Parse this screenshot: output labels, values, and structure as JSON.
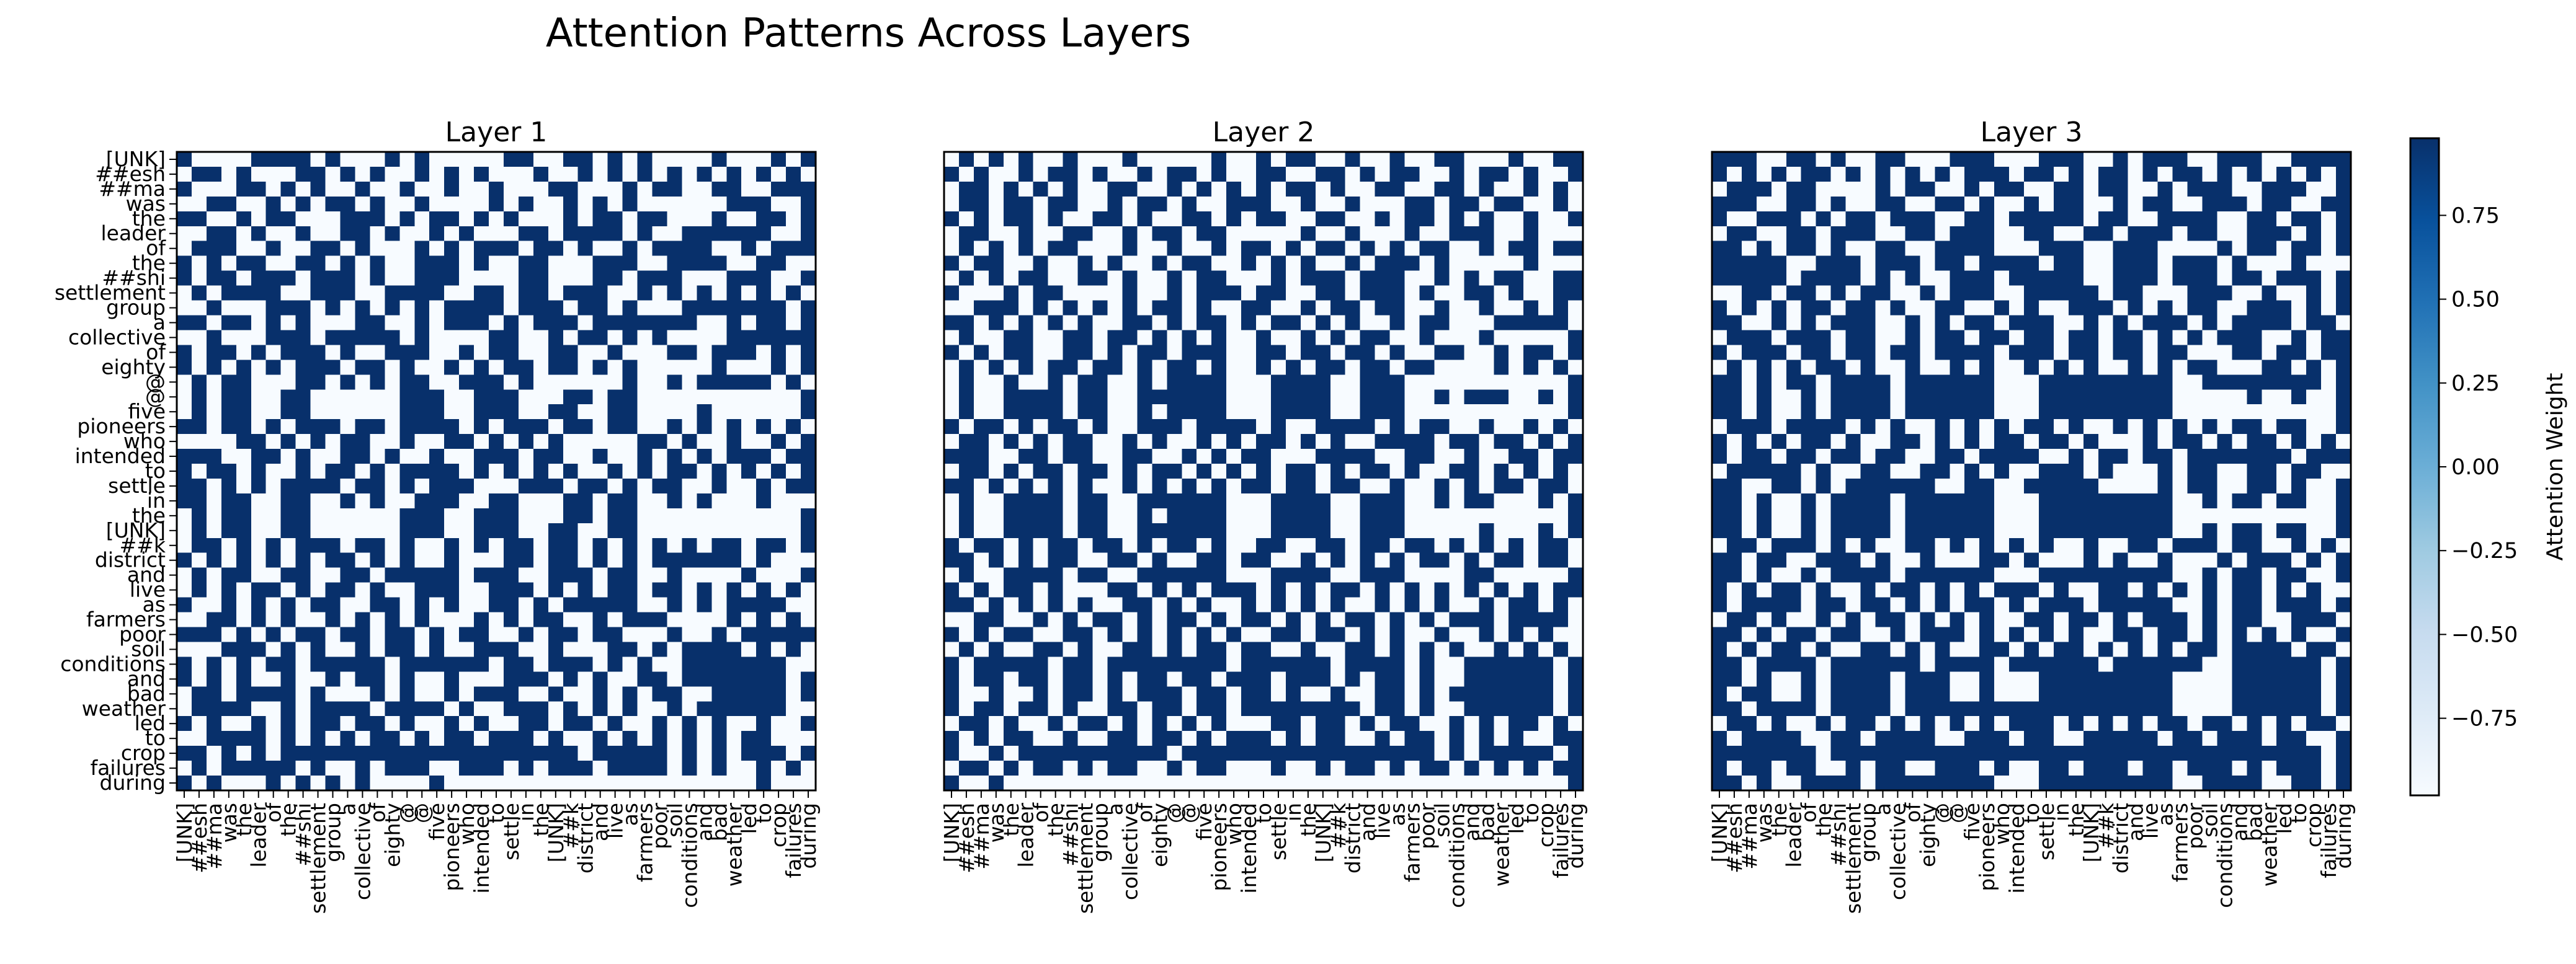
{
  "figure": {
    "title": "Attention Patterns Across Layers"
  },
  "chart_data": {
    "type": "heatmap",
    "tokens": [
      "[UNK]",
      "##esh",
      "##ma",
      "was",
      "the",
      "leader",
      "of",
      "the",
      "##shi",
      "settlement",
      "group",
      "a",
      "collective",
      "of",
      "eighty",
      "@",
      "@",
      "five",
      "pioneers",
      "who",
      "intended",
      "to",
      "settle",
      "in",
      "the",
      "[UNK]",
      "##k",
      "district",
      "and",
      "live",
      "as",
      "farmers",
      "poor",
      "soil",
      "conditions",
      "and",
      "bad",
      "weather",
      "led",
      "to",
      "crop",
      "failures",
      "during"
    ],
    "colorbar": {
      "label": "Attention Weight",
      "ticks": [
        "0.75",
        "0.50",
        "0.25",
        "0.00",
        "−0.25",
        "−0.50",
        "−0.75"
      ],
      "tick_values": [
        0.75,
        0.5,
        0.25,
        0.0,
        -0.25,
        -0.5,
        -0.75
      ],
      "range": [
        -0.98,
        0.98
      ],
      "colors": [
        "#f7fbff",
        "#deebf7",
        "#c6dbef",
        "#9ecae1",
        "#6baed6",
        "#4292c6",
        "#2171b5",
        "#08519c",
        "#08306b"
      ]
    },
    "panels": [
      {
        "title": "Layer 1",
        "matrix": [
          "1000011110100010100000110011010100001000101",
          "0110100011010100101010001001010101010101010",
          "1000110101001001001001000110001011001100111",
          "0011001010110100100001010010101000000111001",
          "1100101100011101011010100010110110001001101",
          "0011010010011010010100011011110100111111001",
          "0111001001101000101011101101001011110010111",
          "1010110011010100111010011000111001111001100",
          "1011011101110100111000011000110111000111001",
          "0101111001110011110011011011100101010101010",
          "0010001110101010101111011101101000111111101",
          "1101101010001100101110101110111111100101101",
          "0010001110111110100001100101101010000111111",
          "1011010111010011100101100110010001101110101",
          "1010101011101101001010110110101000001000101",
          "0101100011010101100111010000001001011111010",
          "0101100110000001110011100011011000000000001",
          "0101100110000001110011100110011000010000001",
          "1101101011101101111010111011011001010101010",
          "0000110101011001001101010100000110100100101",
          "1110011010011010010011101100100101010111011",
          "1011010010110101111010101010010101101010101",
          "1101010111101101011100011101101011001001011",
          "1101100110010100111001100011011001010001000",
          "0101100110000001110011100011011000000000001",
          "0101100110000001110011100110011000000000001",
          "0110101011101101001010110110101010101101101",
          "1010101010110101001000110110101011111101000",
          "0101100110011011111011100111011001000010001",
          "0101011010110100111001110101011011010101010",
          "1001010101100110101001101011111001010111100",
          "0011010100101010100010101100101110000101010",
          "1110101011011011010110010110110001001011111",
          "0001110101001011010011100100011010111101010",
          "1010101101111101111110110111010100111111100",
          "1010100100101101001000111010100110111111101",
          "0110111101000101001011100100101011001111101",
          "0111100101111011110100111010101001011111100",
          "1010010101101101001010011011010010101001001",
          "0011110101010110101101110100101010101011000",
          "1101010111111111111111111110111110101011101",
          "0101111101001011100111010111011110101001010",
          "1010001010101000010000000000000000000001000"
        ]
      },
      {
        "title": "Layer 2",
        "matrix": [
          "0101010010001000001001011001001001100010011",
          "1010010110100101101001100110101100101101001",
          "0110101010011001010101011010011001101001010",
          "0110110110010110100111001001000110110110010",
          "1010110100110100110101100110010110101001001",
          "0110010011001011011000001001000100111001000",
          "0101010110001001001011010110101011001011011",
          "1011001001010010110010101001011101000001000",
          "0101011001101001011000101110111001010110011",
          "1000101100001001011101100110111010011010011",
          "0011101010101011010011001011011001001001010",
          "1101010101001101011010110101001011000111110",
          "0100110011011010101001001010110010001000001",
          "1010110011010110111001101101101001100101101",
          "0101010110110101101001010110110110000101010",
          "0100100101100101111000111100111000000000001",
          "0100111101100111111000111100111001011100101",
          "0100111101100101111000111100111000000000001",
          "1011010110100111011110100111101011001001010",
          "0110101011001010010101101010011110110110101",
          "1110011011001100101011000111100110010011011",
          "0110101101101011010101011010110100110101010",
          "1101010101001010101011011011001001010110110",
          "0100111101100111111000111100111001011000101",
          "0100111101100101111000111100111000000000001",
          "0100111101100111111000111100111000001000101",
          "1011010110110101101001100110110110101010110",
          "1101010110011010011011001010101011010110110",
          "0100111101100111111000111100111000011000001",
          "1010110100011010101110101011010101010101011",
          "1101010101001101010010101010010101001011010",
          "0011001010110101101011010101101010111011110",
          "1010110011010101010100110110101001001010100",
          "0101001101001101011011001001101010100101010",
          "1011111011011111111011111101111010011111101",
          "1011011011010110110111011101011010011111101",
          "1001001011010111011011010010011010111111101",
          "1011011010011011011011111111011010011111101",
          "0110100101101010101000110110101100101011010",
          "1010110010011011010111010110010110101010011",
          "1001011111111110111111111111111110101111101",
          "0110101101011001011000100101101011010101011",
          "1001000000000000000000000000000000000000001"
        ]
      },
      {
        "title": "Layer 3",
        "matrix": [
          "1110011010011000111000111001011100111001111",
          "1010101101010101011101101011010110101010101",
          "0111011000010110010110011011001011100111001",
          "1110011010011001101001011001011001110110011",
          "1001110101101110011011111011001111001101101",
          "0110011011100110111001100110111011001110101",
          "1101011010011001111000111001110000101101101",
          "1111100111011101101111011001110111010001000",
          "1111101111010100111011111001110111011011101",
          "0011011010110010111001111101100011100100101",
          "1010101101101001100101001110101011001110101",
          "1100101011100101011011100101011101011110110",
          "0111011101100101101101101101101010111001011",
          "1011101101101101111011101101101100011011011",
          "0101010110100100101001010100101011000110101",
          "1101011011110111111000111111111001111111101",
          "1101001011110111111000111111111000001001001",
          "1101001011110111111000111111111000000000001",
          "0111011110101001010101101001010101011011001",
          "1010101101001101010110110100010110101101010",
          "1011011011011001101111001011011011111110111",
          "0111110100110011010100111010001011001101100",
          "1100110101111110011001111100001011001101001",
          "1101001011110111111000111111111001011011001",
          "1101001011110111111000111111111000000000001",
          "1101001011110111111000111111111001011011001",
          "0110111010100110101010100100110111011001010",
          "1101100111010010001101000101001000101110101",
          "1101001011110111111000111111111001011011001",
          "1010110100101101010111010011010101011010100",
          "1011110110110101011010111011111001011011101",
          "0110100101011010101001101101011101011001110",
          "1101011011001011101010101001101101010101001",
          "1010110100110101001101011010101011011110110",
          "1101111011111101111011111101111110011111101",
          "1101001011110111001000111111111000011111101",
          "1011001011110111001000111111111000011111101",
          "1101111011110111111111111111111000011111101",
          "0110100101101010101011101010101101101010110",
          "1011110011011110011101100111110110111011001",
          "1111111011111111111111111111111111111111101",
          "1011011001011001110100110111011011101011101",
          "1101001111011111111000111111111001111001101"
        ]
      }
    ]
  }
}
